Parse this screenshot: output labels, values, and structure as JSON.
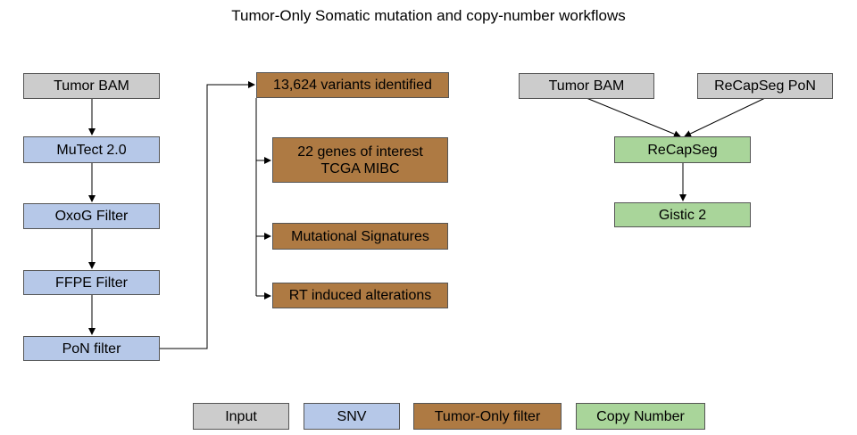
{
  "title": "Tumor-Only Somatic mutation and copy-number workflows",
  "colors": {
    "input": "#cccccc",
    "snv": "#b6c8e8",
    "tumor_only_filter": "#ae7a43",
    "copy_number": "#a9d59a"
  },
  "snv_pipeline": {
    "tumor_bam": "Tumor BAM",
    "mutect": "MuTect 2.0",
    "oxog": "OxoG Filter",
    "ffpe": "FFPE Filter",
    "pon": "PoN filter"
  },
  "tumor_only": {
    "variants": "13,624 variants identified",
    "genes_line1": "22 genes of interest",
    "genes_line2": "TCGA MIBC",
    "signatures": "Mutational Signatures",
    "rt": "RT induced alterations"
  },
  "copy_number": {
    "tumor_bam": "Tumor BAM",
    "recapseg_pon": "ReCapSeg PoN",
    "recapseg": "ReCapSeg",
    "gistic": "Gistic 2"
  },
  "legend": {
    "input": "Input",
    "snv": "SNV",
    "tumor_only": "Tumor-Only filter",
    "copy_number": "Copy Number"
  }
}
